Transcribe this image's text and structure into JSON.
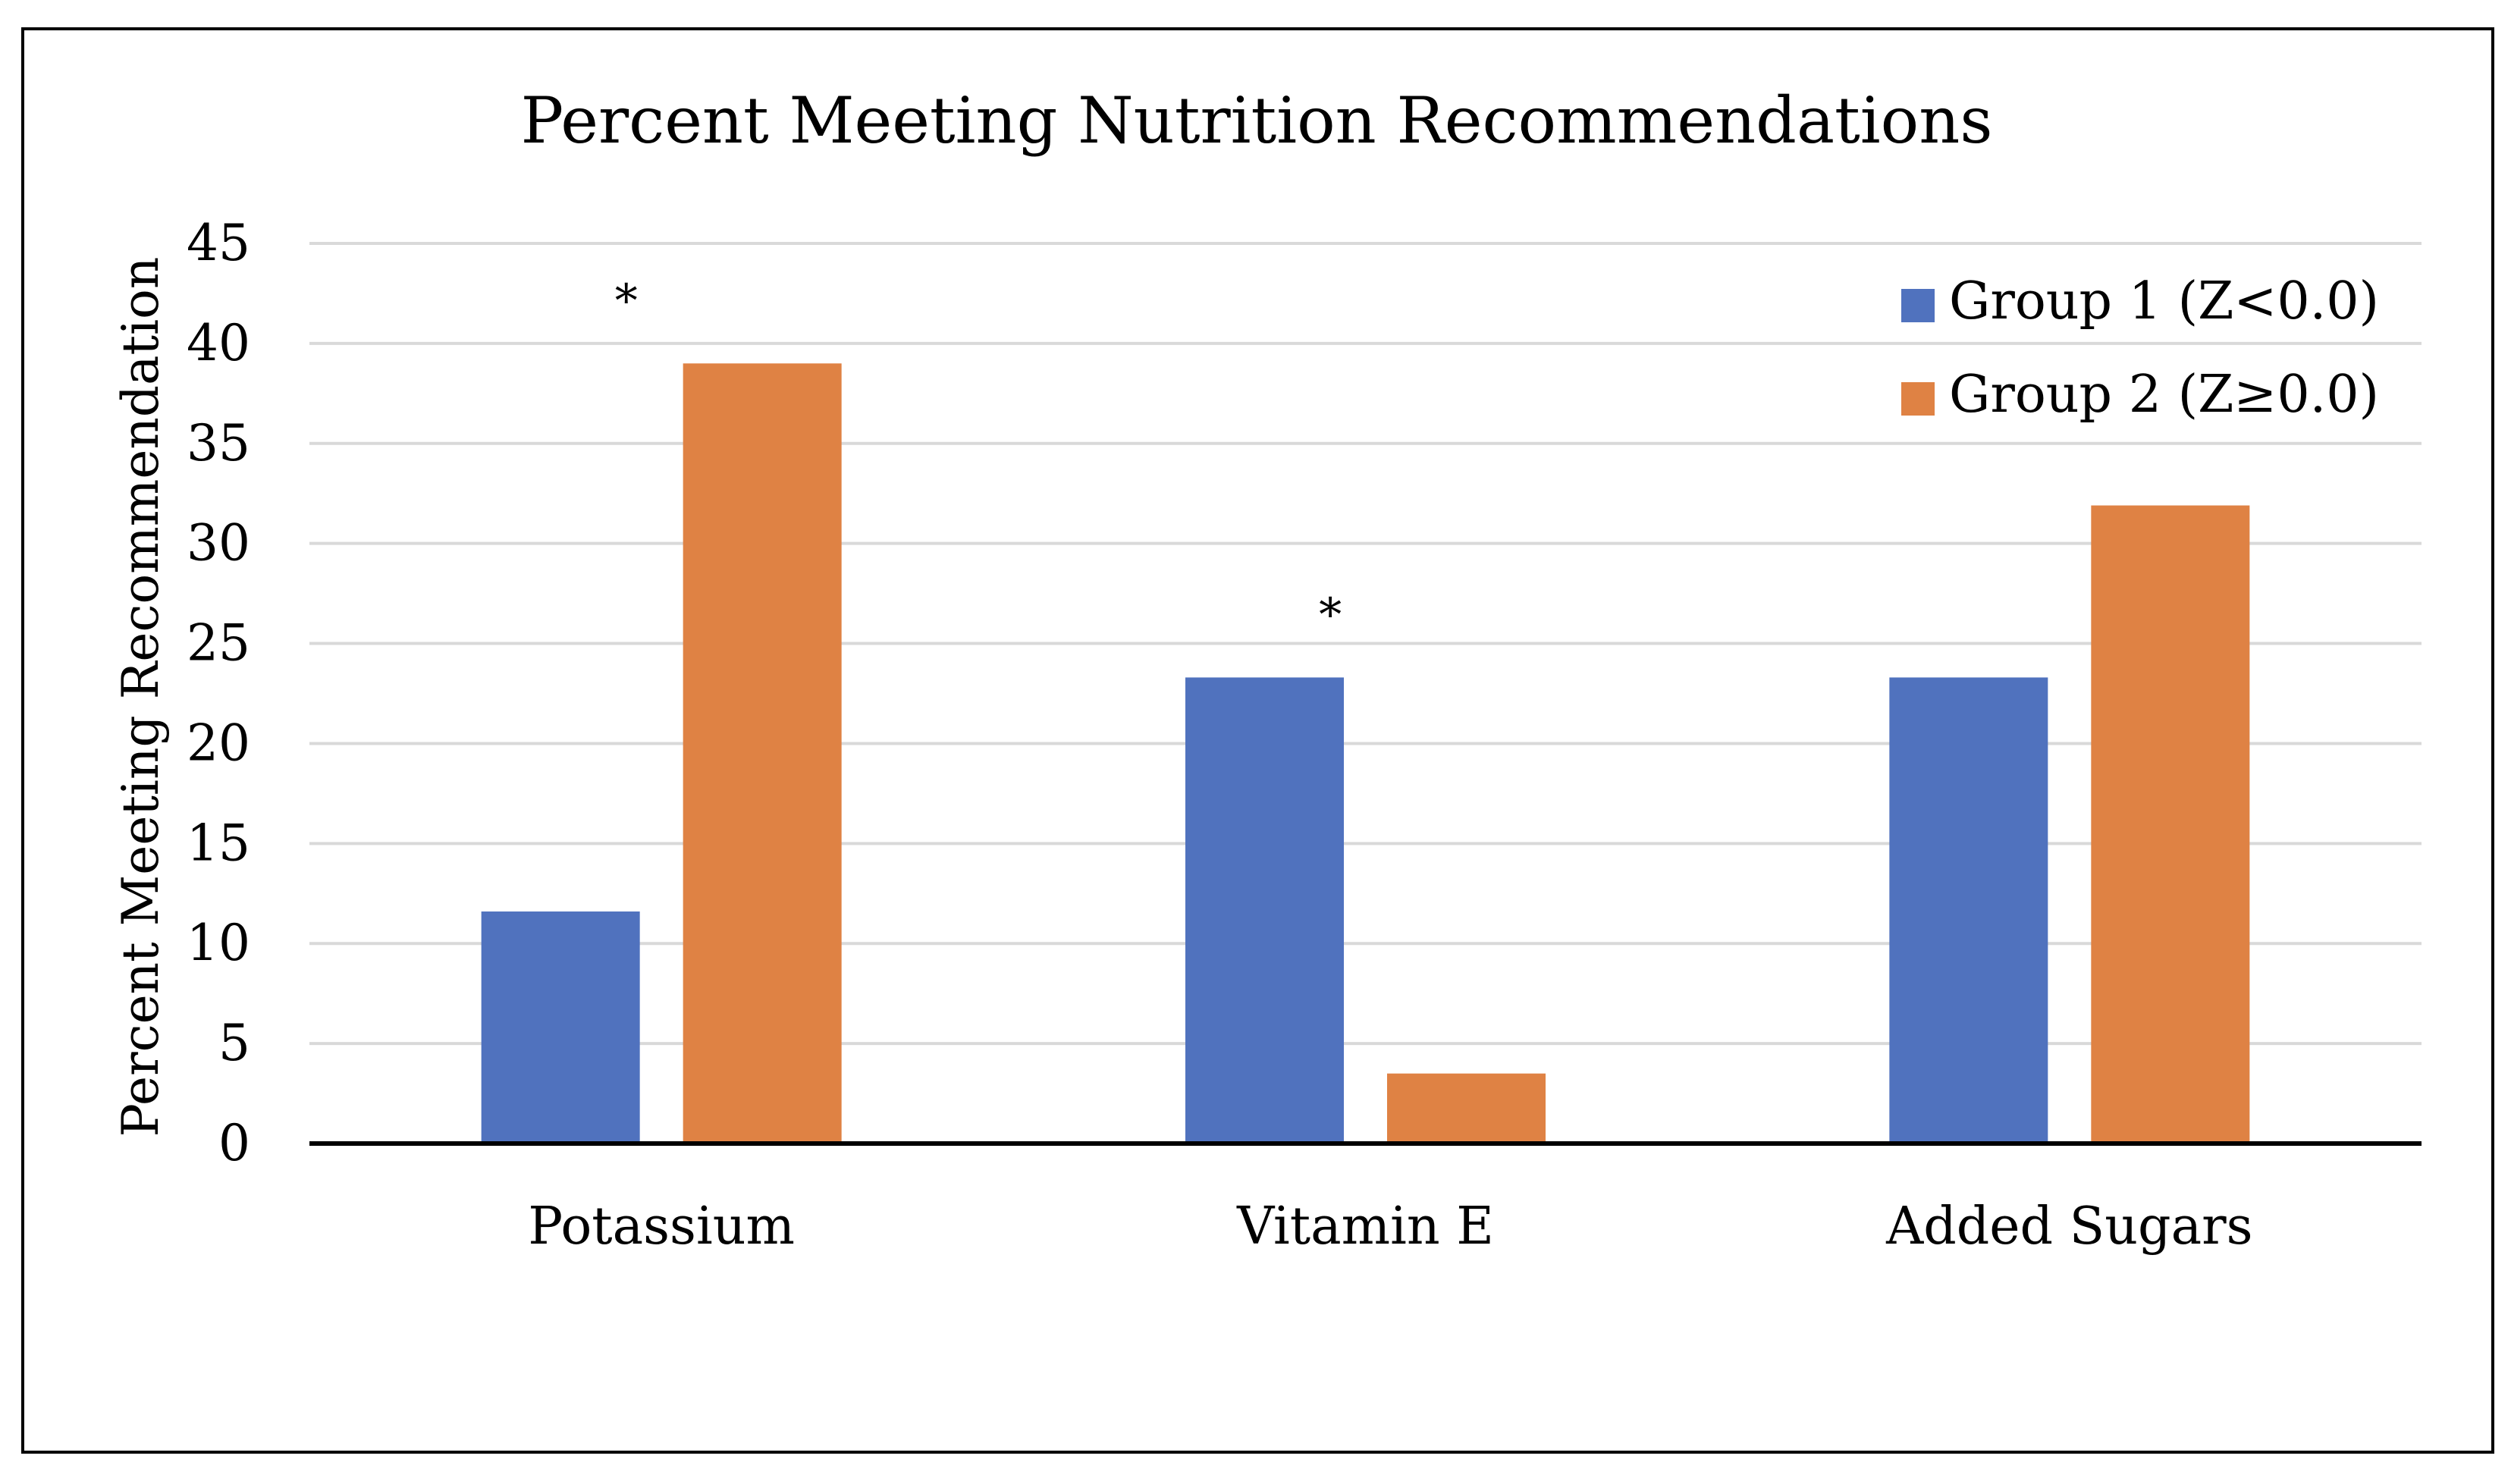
{
  "chart_data": {
    "type": "bar",
    "title": "Percent Meeting Nutrition Recommendations",
    "xlabel": "",
    "ylabel": "Percent Meeting Recommendation",
    "ylim": [
      0,
      45
    ],
    "yticks": [
      "0",
      "5",
      "10",
      "15",
      "20",
      "25",
      "30",
      "35",
      "40",
      "45"
    ],
    "grid": true,
    "legend_position": "top-right",
    "categories": [
      "Potassium",
      "Vitamin E",
      "Added Sugars"
    ],
    "series": [
      {
        "name": "Group 1 (Z<0.0)",
        "color": "#5072BE",
        "values": [
          11.6,
          23.3,
          23.3
        ]
      },
      {
        "name": "Group 2 (Z≥0.0)",
        "color": "#DF8244",
        "values": [
          39.0,
          3.5,
          31.9
        ]
      }
    ],
    "annotations": [
      {
        "category": "Potassium",
        "text": "*",
        "y": 42.5
      },
      {
        "category": "Vitamin E",
        "text": "*",
        "y": 26.8
      }
    ]
  }
}
